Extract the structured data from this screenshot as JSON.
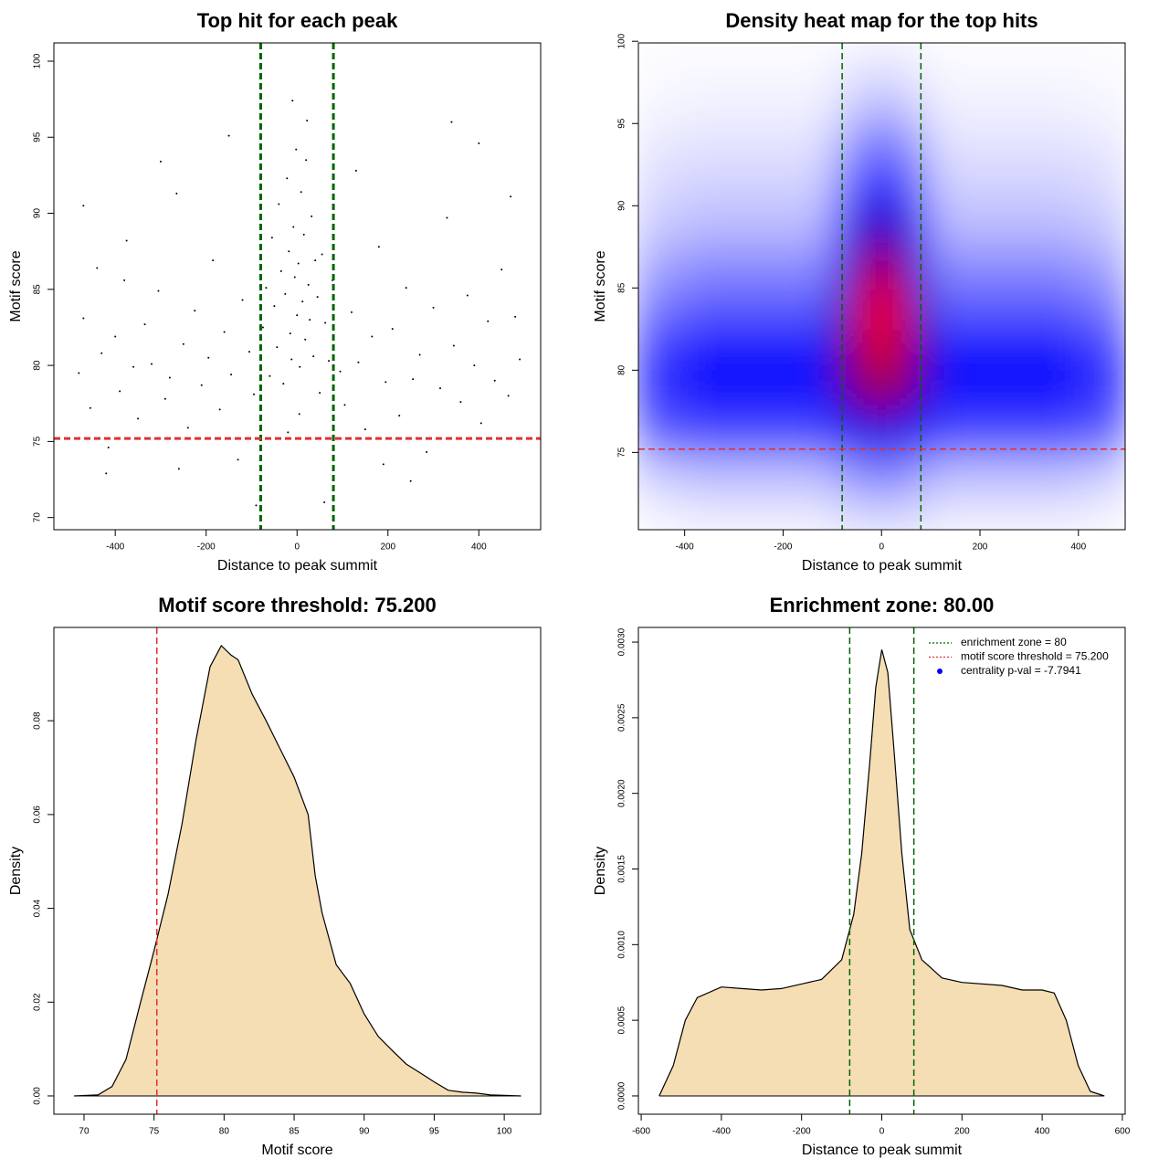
{
  "chart_data": [
    {
      "type": "scatter",
      "title": "Top hit for each peak",
      "x_label": "Distance to peak summit",
      "y_label": "Motif score",
      "x": [
        -480,
        -470,
        -455,
        -440,
        -430,
        -415,
        -400,
        -390,
        -375,
        -360,
        -350,
        -335,
        -320,
        -305,
        -290,
        -280,
        -265,
        -250,
        -240,
        -225,
        -210,
        -195,
        -185,
        -170,
        -160,
        -145,
        -130,
        -120,
        -105,
        -95,
        -470,
        -420,
        -300,
        -150,
        -380,
        -260,
        -75,
        -68,
        -60,
        -55,
        -50,
        -44,
        -40,
        -35,
        -30,
        -26,
        -22,
        -18,
        -15,
        -12,
        -8,
        -5,
        -2,
        0,
        3,
        6,
        9,
        12,
        15,
        18,
        22,
        25,
        28,
        32,
        36,
        40,
        45,
        50,
        55,
        62,
        70,
        78,
        -10,
        5,
        -20,
        20,
        95,
        105,
        120,
        135,
        150,
        165,
        180,
        195,
        210,
        225,
        240,
        255,
        270,
        285,
        300,
        315,
        330,
        345,
        360,
        375,
        390,
        405,
        420,
        435,
        450,
        465,
        480,
        490,
        130,
        250,
        400,
        470,
        190,
        340,
        60,
        -90
      ],
      "y": [
        79.5,
        83.1,
        77.2,
        86.4,
        80.8,
        74.6,
        81.9,
        78.3,
        88.2,
        79.9,
        76.5,
        82.7,
        80.1,
        84.9,
        77.8,
        79.2,
        91.3,
        81.4,
        75.9,
        83.6,
        78.7,
        80.5,
        86.9,
        77.1,
        82.2,
        79.4,
        73.8,
        84.3,
        80.9,
        78.1,
        90.5,
        72.9,
        93.4,
        95.1,
        85.6,
        73.2,
        82.5,
        85.1,
        79.3,
        88.4,
        83.9,
        81.2,
        90.6,
        86.2,
        78.8,
        84.7,
        92.3,
        87.5,
        82.1,
        80.4,
        89.1,
        85.8,
        94.2,
        83.3,
        86.7,
        79.9,
        91.4,
        84.2,
        88.6,
        81.7,
        96.1,
        85.3,
        83.0,
        89.8,
        80.6,
        86.9,
        84.5,
        78.2,
        87.3,
        82.8,
        80.3,
        85.6,
        97.4,
        76.8,
        75.6,
        93.5,
        79.6,
        77.4,
        83.5,
        80.2,
        75.8,
        81.9,
        87.8,
        78.9,
        82.4,
        76.7,
        85.1,
        79.1,
        80.7,
        74.3,
        83.8,
        78.5,
        89.7,
        81.3,
        77.6,
        84.6,
        80.0,
        76.2,
        82.9,
        79.0,
        86.3,
        78.0,
        83.2,
        80.4,
        92.8,
        72.4,
        94.6,
        91.1,
        73.5,
        96.0,
        71.0,
        70.8
      ],
      "color": "#000000",
      "xlim": [
        -535,
        536
      ],
      "ylim": [
        69.2,
        101.2
      ],
      "xticks": [
        -400,
        -200,
        0,
        200,
        400
      ],
      "yticks": [
        70,
        75,
        80,
        85,
        90,
        95,
        100
      ],
      "vlines": [
        -80,
        80
      ],
      "vline_color": "#006400",
      "hline": 75.2,
      "hline_color": "#e03030"
    },
    {
      "type": "heatmap",
      "title": "Density heat map for the top hits",
      "x_label": "Distance to peak summit",
      "y_label": "Motif score",
      "x_edges": [
        -500,
        -400,
        -300,
        -200,
        -100,
        -50,
        0,
        50,
        100,
        200,
        300,
        400,
        500
      ],
      "y_edges": [
        70,
        72.5,
        75,
        77.5,
        80,
        82.5,
        85,
        87.5,
        90,
        92.5,
        95,
        97.5,
        100
      ],
      "density": [
        [
          0.03,
          0.05,
          0.05,
          0.05,
          0.08,
          0.1,
          0.1,
          0.08,
          0.05,
          0.05,
          0.05,
          0.03
        ],
        [
          0.12,
          0.15,
          0.15,
          0.15,
          0.22,
          0.28,
          0.28,
          0.22,
          0.15,
          0.15,
          0.15,
          0.12
        ],
        [
          0.35,
          0.4,
          0.4,
          0.4,
          0.5,
          0.6,
          0.6,
          0.5,
          0.4,
          0.4,
          0.4,
          0.35
        ],
        [
          0.45,
          0.52,
          0.52,
          0.52,
          0.68,
          0.84,
          0.84,
          0.68,
          0.52,
          0.52,
          0.52,
          0.45
        ],
        [
          0.42,
          0.5,
          0.5,
          0.5,
          0.72,
          0.95,
          0.95,
          0.72,
          0.5,
          0.5,
          0.5,
          0.42
        ],
        [
          0.3,
          0.36,
          0.36,
          0.36,
          0.68,
          1,
          1,
          0.68,
          0.36,
          0.36,
          0.36,
          0.3
        ],
        [
          0.2,
          0.25,
          0.25,
          0.25,
          0.58,
          0.88,
          0.88,
          0.58,
          0.25,
          0.25,
          0.25,
          0.2
        ],
        [
          0.12,
          0.15,
          0.15,
          0.15,
          0.45,
          0.66,
          0.66,
          0.45,
          0.15,
          0.15,
          0.15,
          0.12
        ],
        [
          0.08,
          0.1,
          0.1,
          0.1,
          0.3,
          0.45,
          0.45,
          0.3,
          0.1,
          0.1,
          0.1,
          0.08
        ],
        [
          0.05,
          0.06,
          0.06,
          0.06,
          0.18,
          0.3,
          0.3,
          0.18,
          0.06,
          0.06,
          0.06,
          0.05
        ],
        [
          0.02,
          0.03,
          0.03,
          0.03,
          0.08,
          0.14,
          0.14,
          0.08,
          0.03,
          0.03,
          0.03,
          0.02
        ],
        [
          0.01,
          0.01,
          0.01,
          0.01,
          0.03,
          0.05,
          0.05,
          0.03,
          0.01,
          0.01,
          0.01,
          0.01
        ]
      ],
      "colors": [
        "#ffffff",
        "#0000ff",
        "#ee0000"
      ],
      "xlim": [
        -494,
        495
      ],
      "ylim": [
        70.3,
        99.9
      ],
      "xticks": [
        -400,
        -200,
        0,
        200,
        400
      ],
      "yticks": [
        75,
        80,
        85,
        90,
        95,
        100
      ],
      "vlines": [
        -80,
        80
      ],
      "vline_color": "#006400",
      "hline": 75.2,
      "hline_color": "#e03030"
    },
    {
      "type": "area",
      "title": "Motif score threshold: 75.200",
      "x_label": "Motif score",
      "y_label": "Density",
      "x": [
        69.3,
        71,
        72,
        73,
        74,
        75,
        76,
        77,
        78,
        79,
        79.8,
        80.5,
        81,
        82,
        83,
        84,
        85,
        86,
        86.5,
        87,
        88,
        89,
        90,
        91,
        92,
        93,
        94,
        95,
        96,
        97,
        98,
        99,
        101.2
      ],
      "values": [
        0,
        0.0002,
        0.002,
        0.0078,
        0.0195,
        0.031,
        0.043,
        0.058,
        0.076,
        0.0915,
        0.096,
        0.094,
        0.093,
        0.0857,
        0.08,
        0.074,
        0.068,
        0.06,
        0.047,
        0.039,
        0.028,
        0.024,
        0.0175,
        0.0127,
        0.0097,
        0.0068,
        0.0049,
        0.003,
        0.0012,
        0.0008,
        0.0006,
        0.0002,
        0
      ],
      "color": "#f5deb3",
      "xlim": [
        67.85,
        102.6
      ],
      "ylim": [
        -0.0039,
        0.0999
      ],
      "xticks": [
        70,
        75,
        80,
        85,
        90,
        95,
        100
      ],
      "yticks": [
        {
          "value": 0,
          "label": "0.00"
        },
        {
          "value": 0.02,
          "label": "0.02"
        },
        {
          "value": 0.04,
          "label": "0.04"
        },
        {
          "value": 0.06,
          "label": "0.06"
        },
        {
          "value": 0.08,
          "label": "0.08"
        }
      ],
      "vlines": [
        75.2
      ],
      "vline_color": "#e03030"
    },
    {
      "type": "area",
      "title": "Enrichment zone: 80.00",
      "x_label": "Distance to peak summit",
      "y_label": "Density",
      "x": [
        -555,
        -520,
        -490,
        -460,
        -400,
        -350,
        -300,
        -250,
        -200,
        -150,
        -100,
        -70,
        -50,
        -30,
        -15,
        0,
        15,
        30,
        50,
        70,
        100,
        150,
        200,
        300,
        350,
        400,
        430,
        460,
        490,
        520,
        555
      ],
      "values": [
        0,
        0.0002,
        0.0005,
        0.00065,
        0.00072,
        0.00071,
        0.0007,
        0.00071,
        0.00074,
        0.00077,
        0.0009,
        0.0012,
        0.0016,
        0.0022,
        0.0027,
        0.00295,
        0.0028,
        0.0023,
        0.0016,
        0.0011,
        0.0009,
        0.00078,
        0.00075,
        0.00073,
        0.0007,
        0.0007,
        0.00068,
        0.0005,
        0.0002,
        3e-05,
        0
      ],
      "color": "#f5deb3",
      "xlim": [
        -607,
        607
      ],
      "ylim": [
        -0.000121,
        0.003097
      ],
      "xticks": [
        -600,
        -400,
        -200,
        0,
        200,
        400,
        600
      ],
      "yticks": [
        {
          "value": 0,
          "label": "0.0000"
        },
        {
          "value": 0.0005,
          "label": "0.0005"
        },
        {
          "value": 0.001,
          "label": "0.0010"
        },
        {
          "value": 0.0015,
          "label": "0.0015"
        },
        {
          "value": 0.002,
          "label": "0.0020"
        },
        {
          "value": 0.0025,
          "label": "0.0025"
        },
        {
          "value": 0.003,
          "label": "0.0030"
        }
      ],
      "vlines": [
        -80,
        80
      ],
      "vline_color": "#006400",
      "legend": {
        "position": "topright",
        "entries": [
          {
            "label": "enrichment zone = 80",
            "color": "#006400",
            "symbol": "dotted-line"
          },
          {
            "label": "motif score threshold = 75.200",
            "color": "#e03030",
            "symbol": "dotted-line"
          },
          {
            "label": "centrality p-val = -7.7941",
            "color": "#0000ff",
            "symbol": "point"
          }
        ]
      }
    }
  ]
}
